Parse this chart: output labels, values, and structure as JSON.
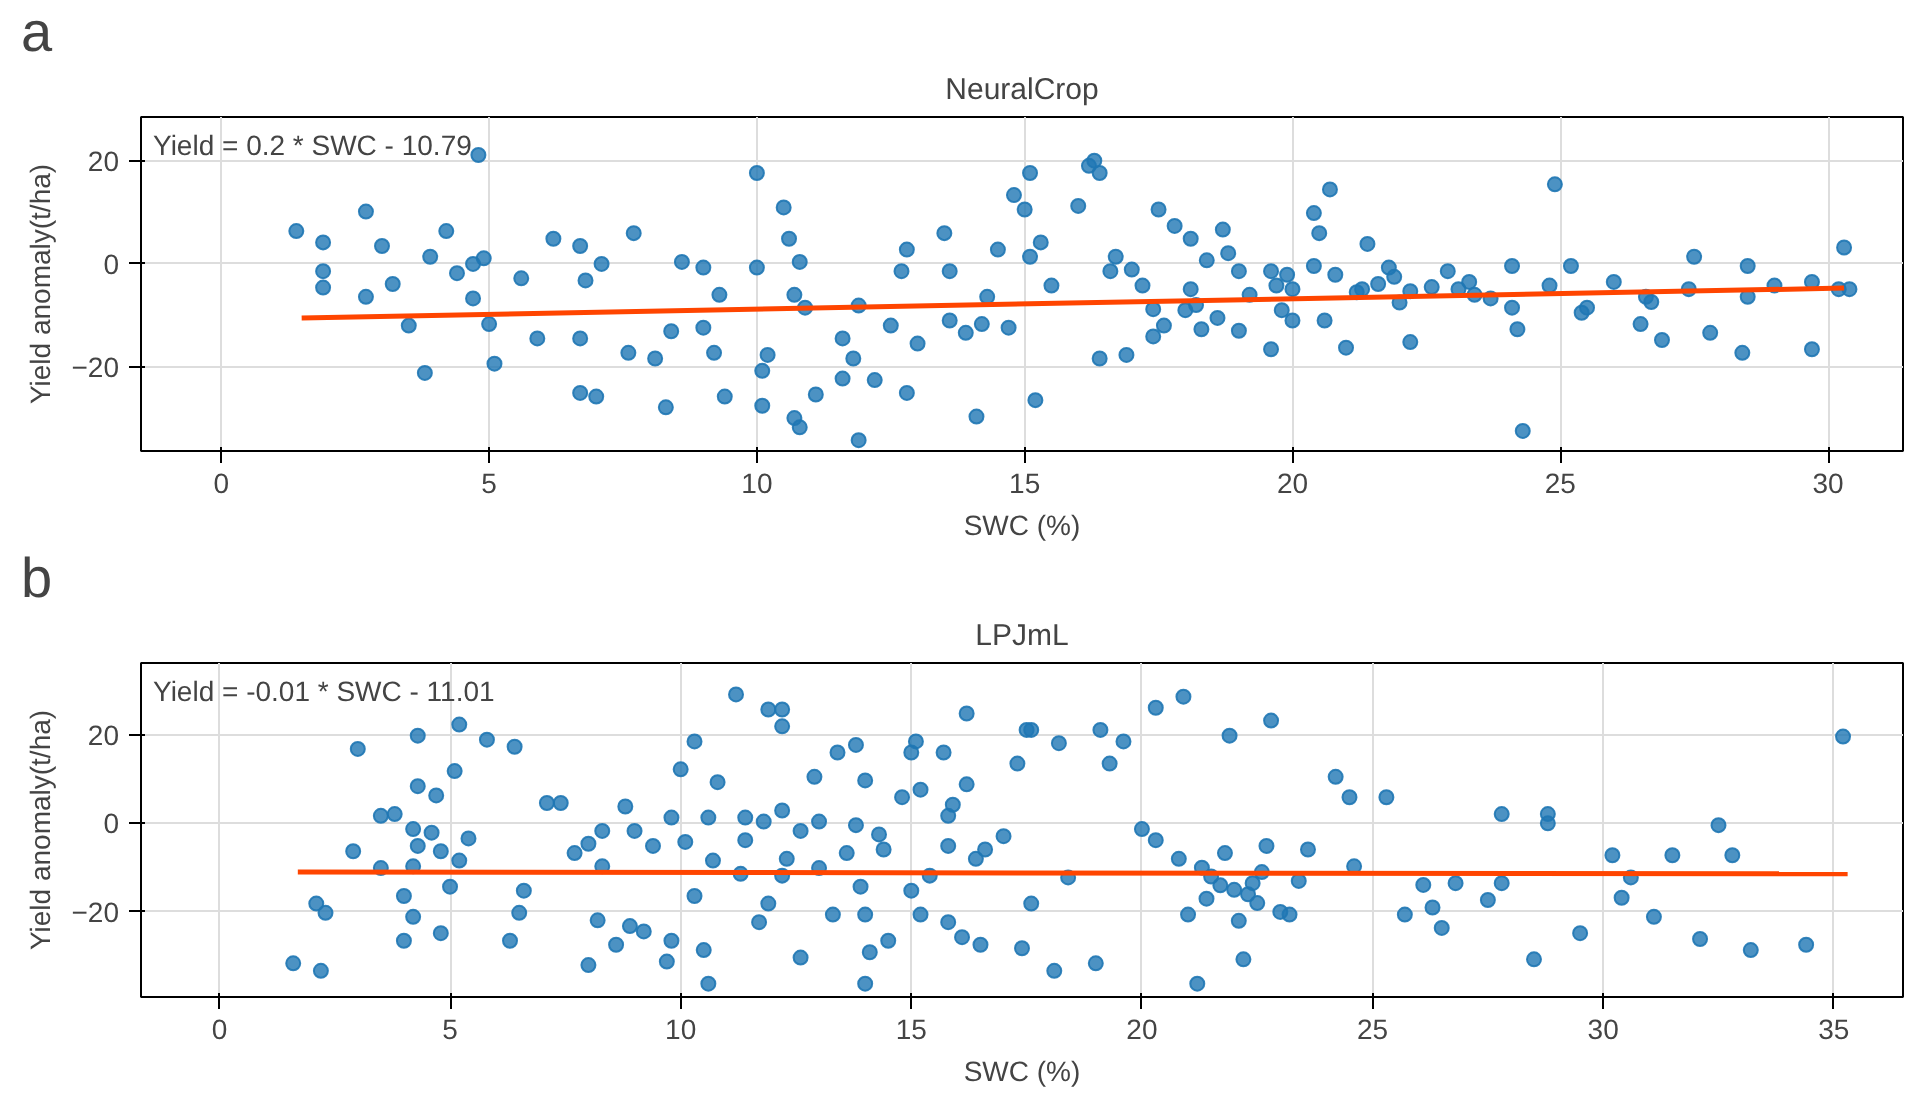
{
  "chart_data": [
    {
      "type": "scatter",
      "title": "NeuralCrop",
      "xlabel": "SWC (%)",
      "ylabel": "Yield anomaly(t/ha)",
      "annotations": [
        "a",
        "Yield = 0.2 * SWC - 10.79"
      ],
      "xlim": [
        -1.5,
        31.4
      ],
      "ylim": [
        -36.4,
        28.6
      ],
      "xticks": [
        0,
        5,
        10,
        15,
        20,
        25,
        30
      ],
      "yticks": [
        -20,
        0,
        20
      ],
      "grid": true,
      "series": [
        {
          "marker": "circle",
          "color": "#1f77b4",
          "x": [
            1.4,
            1.9,
            1.9,
            1.9,
            2.7,
            3.0,
            2.7,
            3.2,
            3.5,
            3.9,
            3.8,
            4.2,
            4.4,
            4.7,
            4.9,
            4.7,
            5.0,
            5.1,
            5.6,
            5.9,
            6.2,
            6.7,
            6.8,
            6.7,
            6.7,
            7.0,
            7.1,
            7.7,
            7.6,
            8.1,
            8.4,
            8.3,
            8.6,
            9.0,
            9.0,
            9.2,
            9.3,
            9.4,
            10.0,
            10.0,
            10.1,
            10.2,
            10.1,
            10.6,
            10.7,
            10.5,
            10.8,
            10.9,
            10.7,
            10.8,
            11.1,
            11.6,
            11.6,
            11.8,
            11.9,
            11.9,
            12.2,
            12.8,
            12.5,
            12.7,
            12.8,
            13.0,
            13.5,
            13.6,
            13.6,
            13.9,
            14.2,
            14.1,
            14.3,
            14.5,
            14.7,
            14.8,
            15.0,
            15.1,
            15.2,
            15.3,
            15.5,
            16.0,
            16.2,
            16.4,
            16.4,
            16.7,
            16.9,
            17.0,
            17.2,
            17.4,
            17.4,
            17.5,
            17.8,
            18.1,
            18.3,
            18.4,
            18.7,
            19.0,
            19.6,
            19.7,
            19.9,
            20.0,
            20.0,
            20.4,
            20.5,
            20.7,
            20.4,
            20.8,
            21.0,
            21.3,
            21.4,
            21.6,
            21.9,
            22.2,
            22.2,
            22.9,
            23.1,
            23.7,
            24.1,
            24.1,
            24.2,
            24.9,
            24.8,
            25.2,
            25.5,
            25.4,
            26.0,
            26.6,
            26.7,
            26.9,
            26.5,
            27.4,
            27.5,
            28.4,
            28.5,
            28.5,
            29.7,
            30.2,
            30.4,
            30.3,
            29.7,
            29.0,
            27.8,
            24.3,
            23.3,
            21.8,
            18.8,
            15.1,
            16.6,
            18.1,
            19.6,
            4.8,
            16.3,
            18.2,
            18.6,
            19.2,
            19.8,
            20.6,
            21.2,
            22.0,
            22.6,
            23.4,
            17.6,
            18.0,
            19.0
          ],
          "values": [
            6.4,
            4.2,
            -1.4,
            -4.6,
            10.2,
            3.5,
            -6.4,
            -3.9,
            -12.0,
            1.4,
            -21.2,
            6.4,
            -1.8,
            0.0,
            1.1,
            -6.7,
            -11.7,
            -19.4,
            -2.8,
            -14.5,
            4.9,
            3.5,
            -3.2,
            -14.5,
            -25.1,
            -25.8,
            0.0,
            6.0,
            -17.3,
            -18.4,
            -13.1,
            -27.9,
            0.4,
            -0.7,
            -12.4,
            -17.3,
            -6.0,
            -25.8,
            17.7,
            -0.7,
            -20.8,
            -17.7,
            -27.6,
            4.9,
            -6.0,
            11.0,
            0.4,
            -8.5,
            -30.0,
            -31.8,
            -25.4,
            -22.3,
            -14.5,
            -18.4,
            -8.1,
            -34.3,
            -22.6,
            2.8,
            -12.0,
            -1.4,
            -25.1,
            -15.5,
            6.0,
            -1.4,
            -11.0,
            -13.4,
            -11.7,
            -29.7,
            -6.4,
            2.8,
            -12.4,
            13.4,
            10.6,
            17.7,
            -26.5,
            4.2,
            -4.2,
            11.3,
            19.1,
            17.7,
            -18.4,
            1.4,
            -17.7,
            -1.1,
            -4.2,
            -8.8,
            -14.1,
            10.6,
            7.4,
            4.9,
            -12.7,
            0.7,
            6.7,
            -1.4,
            -16.6,
            -4.2,
            -2.1,
            -4.9,
            -11.0,
            -0.4,
            6.0,
            14.5,
            9.9,
            -2.1,
            -16.3,
            -4.9,
            3.9,
            -3.9,
            -2.5,
            -5.3,
            -15.2,
            -1.4,
            -4.9,
            -6.7,
            -8.5,
            -0.4,
            -12.7,
            15.5,
            -4.2,
            -0.4,
            -8.5,
            -9.5,
            -3.5,
            -6.4,
            -7.4,
            -14.8,
            -11.7,
            -4.9,
            1.4,
            -17.3,
            -6.4,
            -0.4,
            -16.6,
            -4.9,
            -4.9,
            3.2,
            -3.5,
            -4.2,
            -13.4,
            -32.5,
            -3.5,
            -0.7,
            2.1,
            1.4,
            -1.4,
            -4.9,
            -1.4,
            21.2,
            20.1,
            -8.0,
            -10.5,
            -6.0,
            -9.0,
            -11.0,
            -5.5,
            -7.5,
            -4.5,
            -6.0,
            -12.0,
            -9.0,
            -13.0
          ]
        },
        {
          "type": "line",
          "color": "#ff4500",
          "x": [
            1.5,
            30.3
          ],
          "values": [
            -10.5,
            -4.7
          ]
        }
      ]
    },
    {
      "type": "scatter",
      "title": "LPJmL",
      "xlabel": "SWC (%)",
      "ylabel": "Yield anomaly(t/ha)",
      "annotations": [
        "b",
        "Yield = -0.01 * SWC - 11.01"
      ],
      "xlim": [
        -1.7,
        36.5
      ],
      "ylim": [
        -39.2,
        36.2
      ],
      "xticks": [
        0,
        5,
        10,
        15,
        20,
        25,
        30,
        35
      ],
      "yticks": [
        -20,
        0,
        20
      ],
      "grid": true,
      "series": [
        {
          "marker": "circle",
          "color": "#1f77b4",
          "x": [
            1.6,
            2.2,
            2.1,
            2.3,
            3.0,
            2.9,
            3.5,
            3.5,
            3.8,
            4.0,
            4.0,
            4.2,
            4.2,
            4.2,
            4.3,
            4.3,
            4.3,
            4.6,
            4.7,
            4.8,
            4.8,
            5.0,
            5.1,
            5.2,
            5.2,
            5.4,
            5.8,
            6.4,
            6.3,
            6.5,
            6.6,
            7.1,
            7.4,
            7.7,
            8.0,
            8.3,
            8.3,
            8.2,
            8.0,
            8.6,
            8.8,
            8.9,
            9.0,
            9.2,
            9.4,
            9.7,
            9.8,
            9.8,
            10.0,
            10.1,
            10.3,
            10.3,
            10.5,
            10.6,
            10.6,
            10.7,
            10.8,
            11.2,
            11.3,
            11.4,
            11.4,
            11.7,
            11.8,
            11.9,
            12.2,
            12.2,
            11.9,
            12.2,
            12.2,
            12.3,
            12.6,
            12.6,
            12.9,
            13.0,
            13.0,
            13.3,
            13.4,
            13.6,
            13.8,
            13.8,
            14.0,
            14.0,
            13.9,
            14.1,
            14.0,
            14.3,
            14.4,
            14.5,
            14.8,
            15.0,
            15.1,
            15.0,
            15.2,
            15.2,
            15.4,
            15.7,
            15.8,
            15.8,
            15.9,
            16.2,
            16.2,
            16.4,
            16.6,
            17.0,
            17.3,
            17.5,
            17.4,
            15.8,
            16.1,
            16.5,
            17.6,
            19.1,
            19.6,
            18.2,
            18.1,
            19.0,
            22.2,
            24.5,
            21.8,
            22.4,
            22.7,
            21.0,
            20.3,
            23.2,
            24.6,
            26.1,
            18.4,
            17.6,
            19.3,
            20.0,
            23.6,
            24.2,
            26.8,
            32.5,
            32.8,
            30.6,
            35.2,
            34.4,
            33.2,
            32.1,
            31.1,
            30.4,
            28.8,
            28.5,
            29.5,
            31.5,
            30.2,
            27.8,
            27.5,
            26.5,
            26.3,
            28.8,
            27.8,
            25.7,
            25.3,
            20.9,
            20.3,
            21.2,
            22.8,
            21.9,
            21.5,
            22.0,
            22.5,
            21.3,
            22.3,
            23.0,
            21.7,
            22.1,
            20.8,
            21.4,
            22.6,
            23.4
          ],
          "values": [
            -31.6,
            -33.3,
            -18.1,
            -20.2,
            16.8,
            -6.3,
            -10.1,
            1.7,
            2.1,
            -16.4,
            -26.5,
            -21.1,
            -9.7,
            -1.3,
            19.8,
            8.4,
            -5.1,
            -2.1,
            6.3,
            -24.8,
            -6.3,
            -14.3,
            11.8,
            22.3,
            -8.4,
            -3.4,
            18.9,
            17.3,
            -26.5,
            -20.2,
            -15.2,
            4.6,
            4.6,
            -6.7,
            -4.6,
            -9.7,
            -1.7,
            -21.9,
            -32.0,
            -27.4,
            3.8,
            -23.2,
            -1.7,
            -24.4,
            -5.1,
            -31.2,
            -26.5,
            1.3,
            12.2,
            -4.2,
            18.5,
            -16.4,
            -28.6,
            -36.2,
            1.3,
            -8.4,
            9.3,
            29.1,
            -11.4,
            1.3,
            -3.8,
            -22.3,
            0.4,
            -18.1,
            -11.8,
            2.9,
            25.7,
            25.7,
            21.9,
            -8.0,
            -1.7,
            -30.3,
            10.5,
            0.4,
            -10.1,
            -20.6,
            16.0,
            -6.7,
            17.7,
            -0.4,
            9.7,
            -20.6,
            -14.3,
            -29.1,
            -36.2,
            -2.5,
            -5.9,
            -26.5,
            5.9,
            16.0,
            18.5,
            -15.2,
            7.6,
            -20.6,
            -11.8,
            16.0,
            1.7,
            -5.1,
            4.2,
            24.8,
            8.8,
            -8.0,
            -5.9,
            -2.9,
            13.5,
            21.1,
            -28.2,
            -22.3,
            -25.7,
            -27.4,
            21.1,
            21.1,
            18.5,
            18.1,
            -33.3,
            -31.6,
            -30.7,
            5.9,
            -6.7,
            -13.5,
            -5.1,
            -20.6,
            -3.8,
            -20.6,
            -9.7,
            -13.9,
            -12.2,
            -18.1,
            13.5,
            -1.3,
            -5.9,
            10.5,
            -13.5,
            -0.4,
            -7.2,
            -12.2,
            19.6,
            -27.4,
            -28.6,
            -26.1,
            -21.1,
            -16.8,
            0.0,
            -30.7,
            -24.8,
            -7.2,
            -7.2,
            -13.5,
            -17.3,
            -23.6,
            -19.0,
            2.1,
            2.1,
            -20.6,
            5.9,
            28.6,
            26.1,
            -36.2,
            23.2,
            19.8,
            -12.0,
            -15.0,
            -18.0,
            -10.0,
            -16.0,
            -20.0,
            -14.0,
            -22.0,
            -8.0,
            -17.0,
            -11.0,
            -13.0
          ]
        },
        {
          "type": "line",
          "color": "#ff4500",
          "x": [
            1.7,
            35.3
          ],
          "values": [
            -11.0,
            -11.4
          ]
        }
      ]
    }
  ]
}
